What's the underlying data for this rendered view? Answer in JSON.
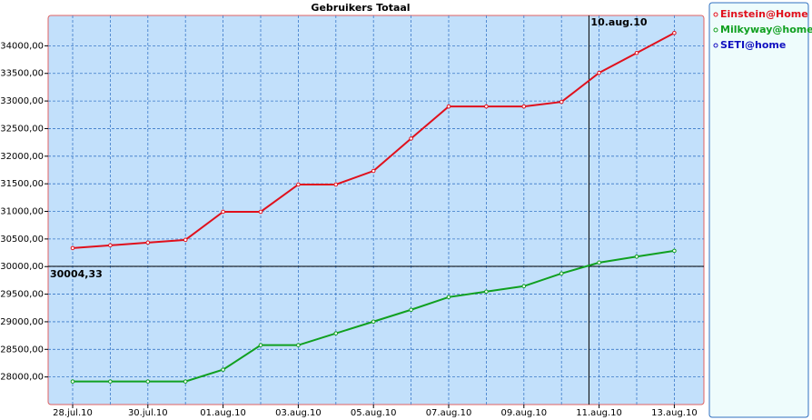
{
  "chart_data": {
    "type": "line",
    "title": "Gebruikers Totaal",
    "categories": [
      "28.jul.10",
      null,
      "30.jul.10",
      null,
      "01.aug.10",
      null,
      "03.aug.10",
      null,
      "05.aug.10",
      null,
      "07.aug.10",
      null,
      "09.aug.10",
      null,
      "11.aug.10",
      null,
      "13.aug.10"
    ],
    "series": [
      {
        "name": "Einstein@Home",
        "color": "#e0101c",
        "values": [
          30335,
          30385,
          30435,
          30484,
          30993,
          30993,
          31487,
          31487,
          31733,
          32320,
          32901,
          32901,
          32901,
          32984,
          33510,
          33870,
          34233
        ]
      },
      {
        "name": "Milkyway@home",
        "color": "#10a020",
        "values": [
          27918,
          27918,
          27918,
          27918,
          28132,
          28576,
          28576,
          28790,
          29003,
          29217,
          29447,
          29546,
          29645,
          29875,
          30072,
          30180,
          30286
        ]
      },
      {
        "name": "SETI@home",
        "color": "#1010c0",
        "values": [
          null,
          null,
          null,
          null,
          null,
          null,
          null,
          null,
          null,
          null,
          null,
          null,
          null,
          null,
          null,
          null,
          null
        ]
      }
    ],
    "ylim": [
      27500,
      34550
    ],
    "yticks": [
      {
        "value": 28000,
        "label": "28000,00"
      },
      {
        "value": 28500,
        "label": "28500,00"
      },
      {
        "value": 29000,
        "label": "29000,00"
      },
      {
        "value": 29500,
        "label": "29500,00"
      },
      {
        "value": 30000,
        "label": "30000,00"
      },
      {
        "value": 30500,
        "label": "30500,00"
      },
      {
        "value": 31000,
        "label": "31000,00"
      },
      {
        "value": 31500,
        "label": "31500,00"
      },
      {
        "value": 32000,
        "label": "32000,00"
      },
      {
        "value": 32500,
        "label": "32500,00"
      },
      {
        "value": 33000,
        "label": "33000,00"
      },
      {
        "value": 33500,
        "label": "33500,00"
      },
      {
        "value": 34000,
        "label": "34000,00"
      }
    ],
    "grid": true,
    "legend": "right",
    "crosshair": {
      "x": {
        "value": 13.73,
        "label": "10.aug.10"
      },
      "y": {
        "value": 30004.33,
        "label": "30004,33"
      }
    }
  }
}
